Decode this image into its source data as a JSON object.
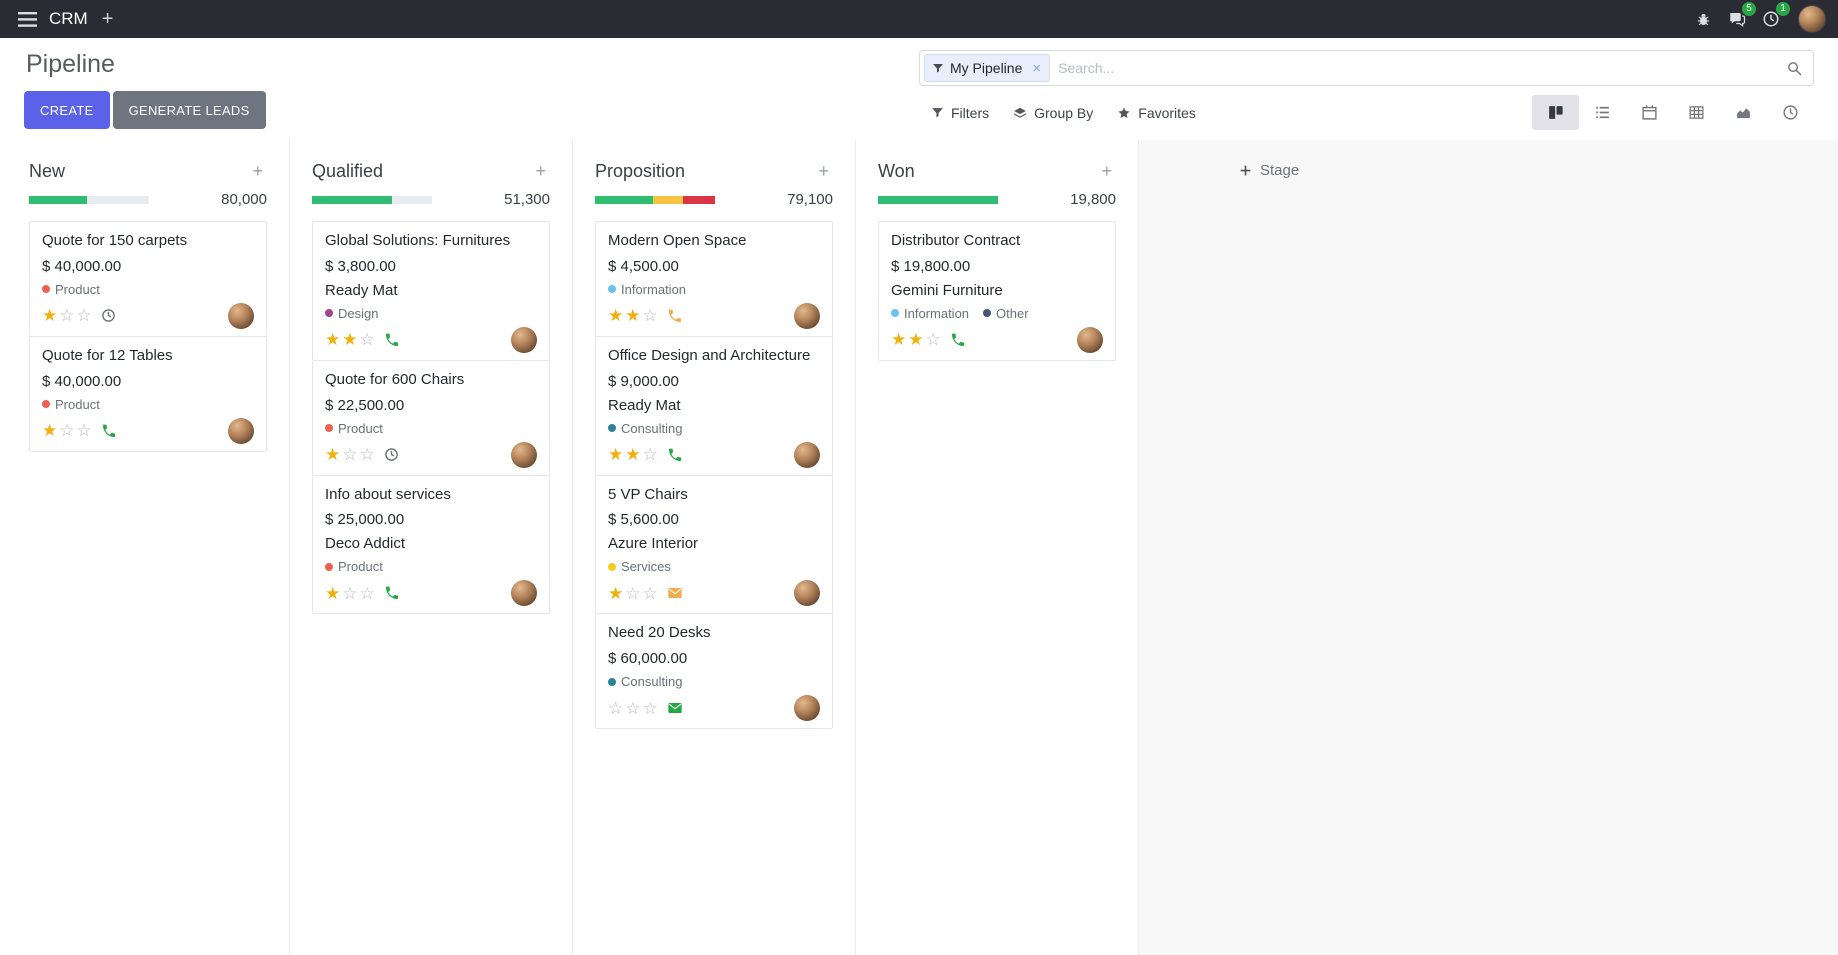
{
  "navbar": {
    "app_name": "CRM",
    "messages_badge": "5",
    "activities_badge": "1"
  },
  "control_panel": {
    "title": "Pipeline",
    "create_label": "CREATE",
    "generate_leads_label": "GENERATE LEADS",
    "search": {
      "facet_label": "My Pipeline",
      "remove_facet": "×",
      "placeholder": "Search..."
    },
    "filters_label": "Filters",
    "group_by_label": "Group By",
    "favorites_label": "Favorites"
  },
  "board": {
    "add_stage_label": "Stage",
    "columns": [
      {
        "name": "New",
        "total": "80,000",
        "progress": [
          {
            "color": "#2ebd73",
            "pct": 48
          }
        ],
        "cards": [
          {
            "title": "Quote for 150 carpets",
            "amount": "$ 40,000.00",
            "tags": [
              {
                "label": "Product",
                "color": "#f06050"
              }
            ],
            "stars": 1,
            "activity": {
              "icon": "clock",
              "color": "#6d7175"
            }
          },
          {
            "title": "Quote for 12 Tables",
            "amount": "$ 40,000.00",
            "tags": [
              {
                "label": "Product",
                "color": "#f06050"
              }
            ],
            "stars": 1,
            "activity": {
              "icon": "phone",
              "color": "#28a745"
            }
          }
        ]
      },
      {
        "name": "Qualified",
        "total": "51,300",
        "progress": [
          {
            "color": "#2ebd73",
            "pct": 67
          }
        ],
        "cards": [
          {
            "title": "Global Solutions: Furnitures",
            "amount": "$ 3,800.00",
            "company": "Ready Mat",
            "tags": [
              {
                "label": "Design",
                "color": "#a24689"
              }
            ],
            "stars": 2,
            "activity": {
              "icon": "phone",
              "color": "#28a745"
            }
          },
          {
            "title": "Quote for 600 Chairs",
            "amount": "$ 22,500.00",
            "tags": [
              {
                "label": "Product",
                "color": "#f06050"
              }
            ],
            "stars": 1,
            "activity": {
              "icon": "clock",
              "color": "#6d7175"
            }
          },
          {
            "title": "Info about services",
            "amount": "$ 25,000.00",
            "company": "Deco Addict",
            "tags": [
              {
                "label": "Product",
                "color": "#f06050"
              }
            ],
            "stars": 1,
            "activity": {
              "icon": "phone",
              "color": "#28a745"
            }
          }
        ]
      },
      {
        "name": "Proposition",
        "total": "79,100",
        "progress": [
          {
            "color": "#2ebd73",
            "pct": 48
          },
          {
            "color": "#f6c343",
            "pct": 25
          },
          {
            "color": "#dc3545",
            "pct": 27
          }
        ],
        "cards": [
          {
            "title": "Modern Open Space",
            "amount": "$ 4,500.00",
            "tags": [
              {
                "label": "Information",
                "color": "#6cc1ed"
              }
            ],
            "stars": 2,
            "activity": {
              "icon": "phone",
              "color": "#f0ad4e"
            }
          },
          {
            "title": "Office Design and Architecture",
            "amount": "$ 9,000.00",
            "company": "Ready Mat",
            "tags": [
              {
                "label": "Consulting",
                "color": "#2c8397"
              }
            ],
            "stars": 2,
            "activity": {
              "icon": "phone",
              "color": "#28a745"
            }
          },
          {
            "title": "5 VP Chairs",
            "amount": "$ 5,600.00",
            "company": "Azure Interior",
            "tags": [
              {
                "label": "Services",
                "color": "#f7cd1f"
              }
            ],
            "stars": 1,
            "activity": {
              "icon": "envelope",
              "color": "#f0ad4e"
            }
          },
          {
            "title": "Need 20 Desks",
            "amount": "$ 60,000.00",
            "tags": [
              {
                "label": "Consulting",
                "color": "#2c8397"
              }
            ],
            "stars": 0,
            "activity": {
              "icon": "envelope",
              "color": "#28a745"
            }
          }
        ]
      },
      {
        "name": "Won",
        "total": "19,800",
        "progress": [
          {
            "color": "#2ebd73",
            "pct": 100
          }
        ],
        "cards": [
          {
            "title": "Distributor Contract",
            "amount": "$ 19,800.00",
            "company": "Gemini Furniture",
            "tags": [
              {
                "label": "Information",
                "color": "#6cc1ed"
              },
              {
                "label": "Other",
                "color": "#475577"
              }
            ],
            "stars": 2,
            "activity": {
              "icon": "phone",
              "color": "#28a745"
            }
          }
        ]
      }
    ]
  }
}
